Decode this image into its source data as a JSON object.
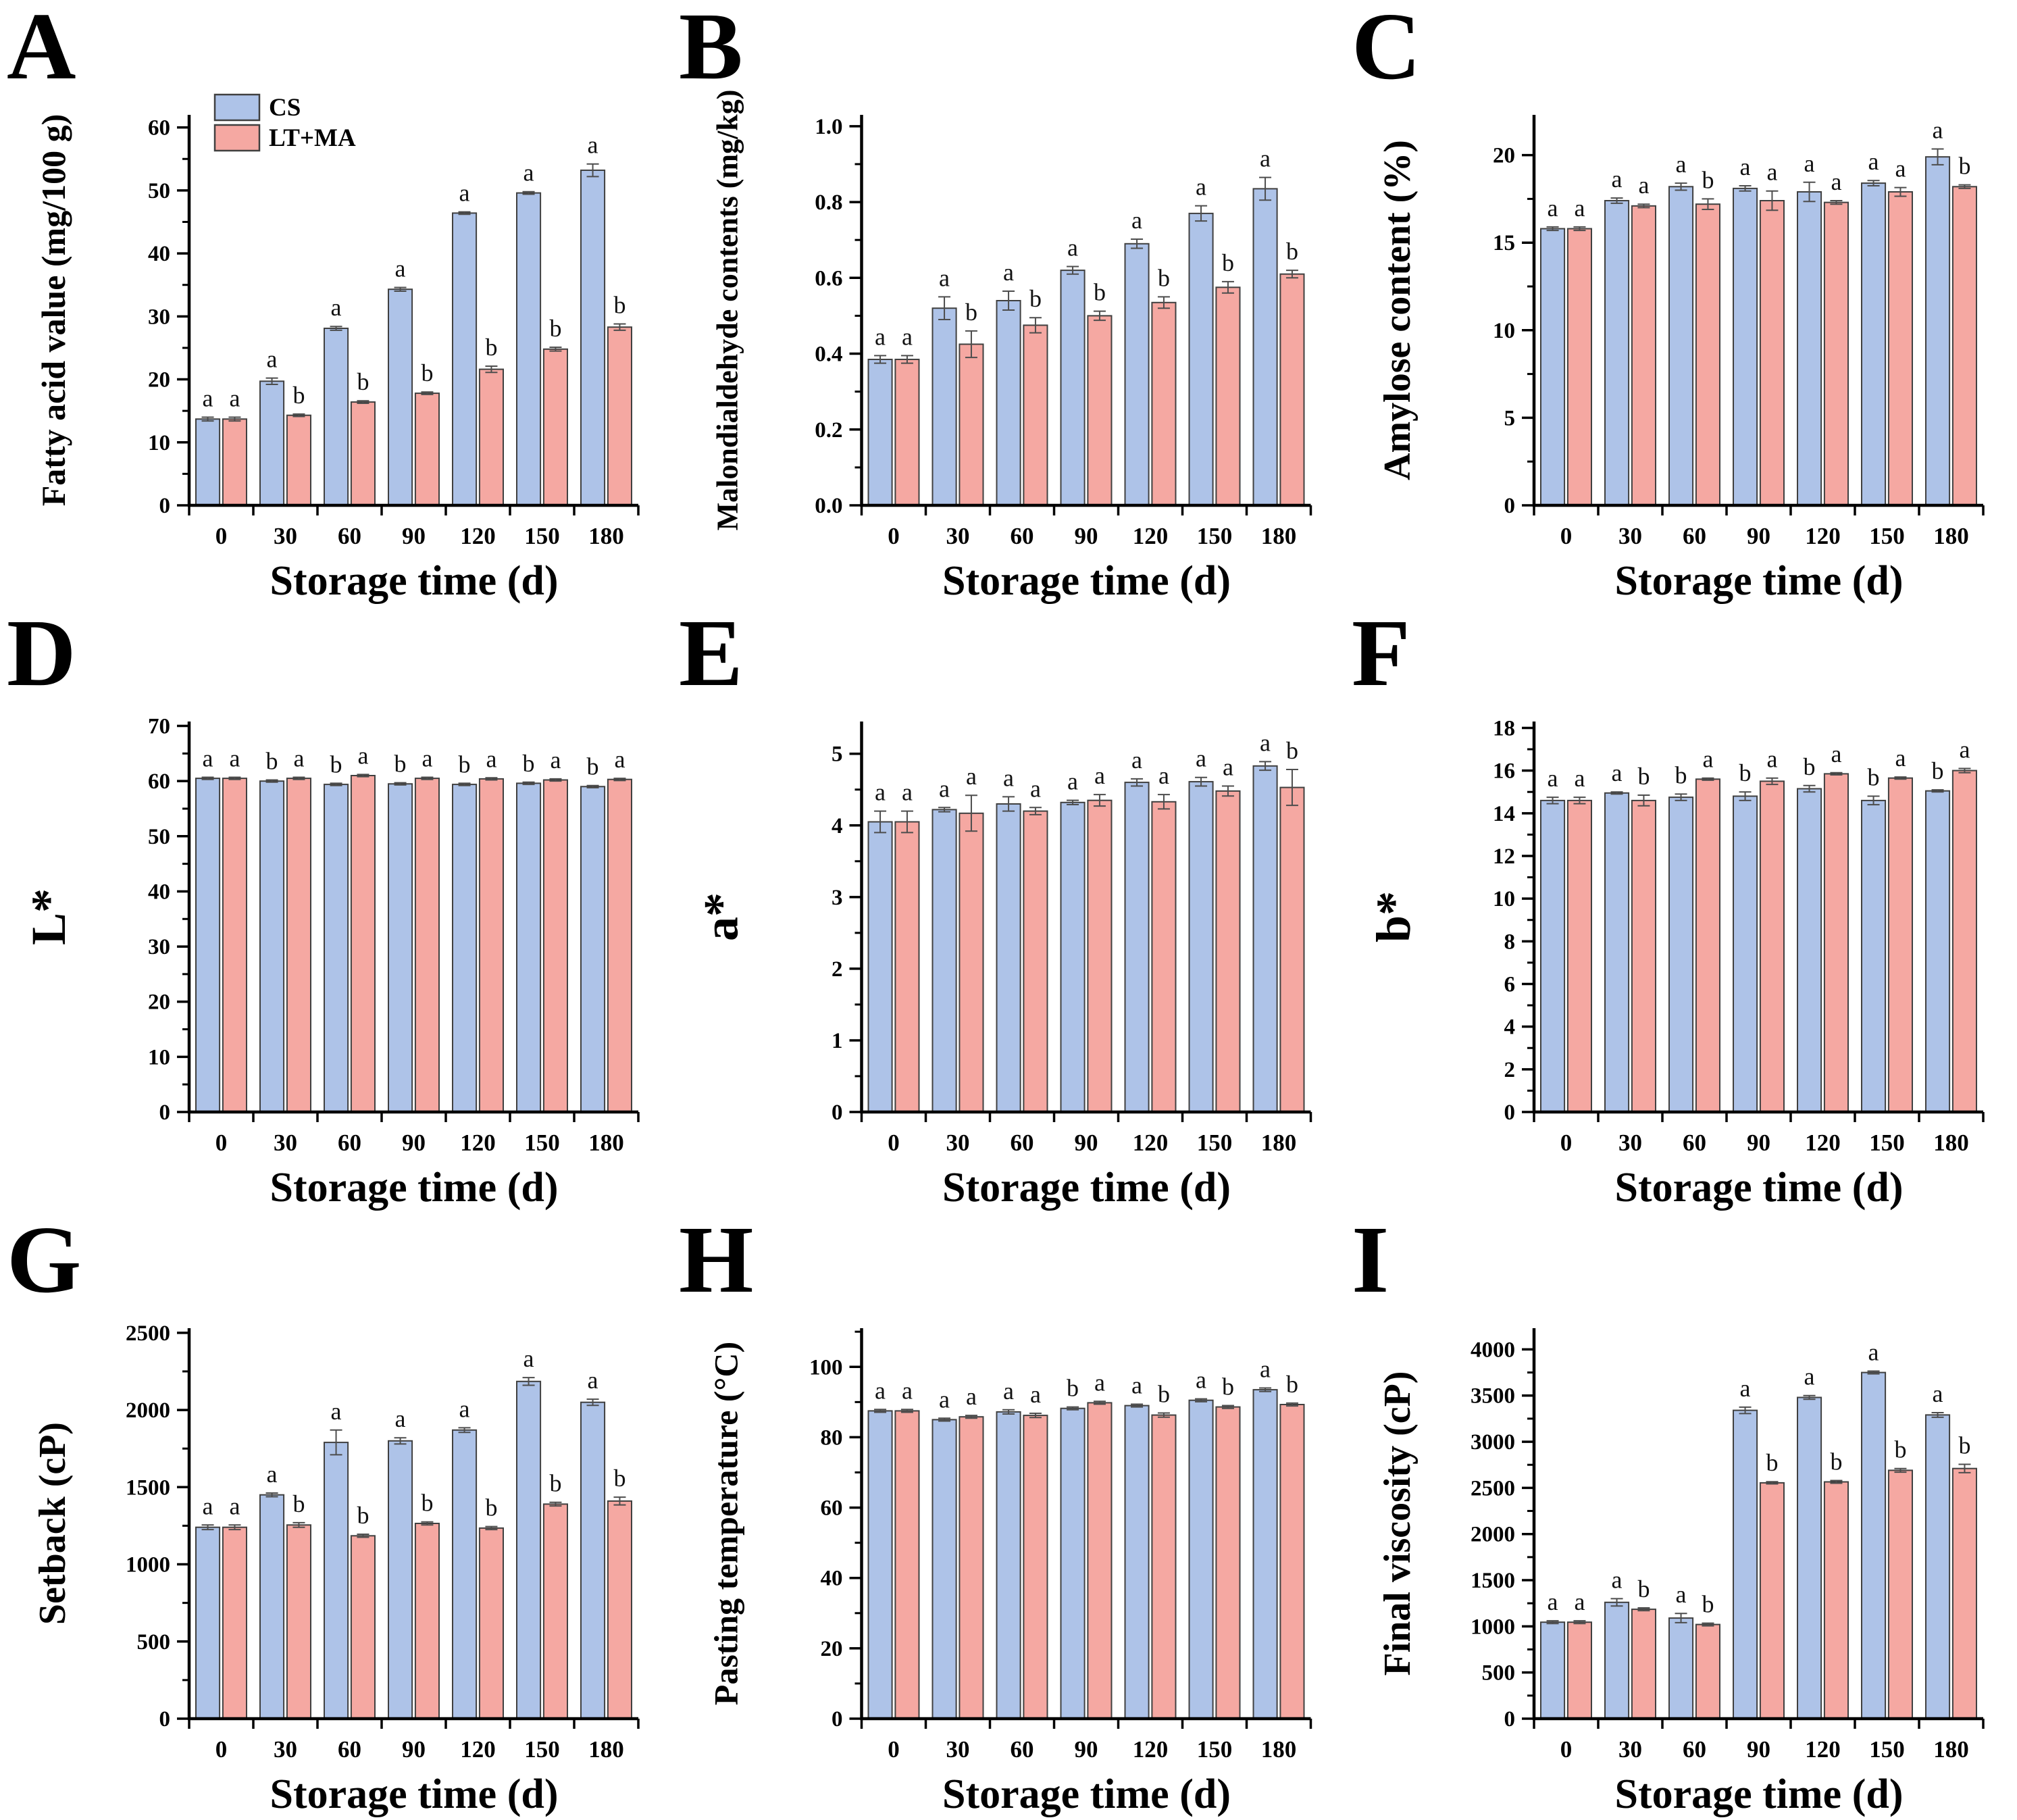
{
  "figure": {
    "background": "#ffffff",
    "axis_color": "#000000",
    "bar_stroke": "#404040",
    "error_color": "#4d4d4d",
    "series_colors": [
      "#aec3e8",
      "#f5a8a2"
    ]
  },
  "legend": {
    "items": [
      {
        "label": "CS",
        "color": "#aec3e8"
      },
      {
        "label": "LT+MA",
        "color": "#f5a8a2"
      }
    ]
  },
  "chart_data": [
    {
      "panel": "A",
      "type": "bar",
      "title": "",
      "xlabel": "Storage time (d)",
      "ylabel": "Fatty acid value (mg/100 g)",
      "categories": [
        "0",
        "30",
        "60",
        "90",
        "120",
        "150",
        "180"
      ],
      "ymax": 62,
      "yticks": [
        0,
        10,
        20,
        30,
        40,
        50,
        60
      ],
      "ytick_labels": [
        "0",
        "10",
        "20",
        "30",
        "40",
        "50",
        "60"
      ],
      "yminor": [
        5,
        15,
        25,
        35,
        45,
        55
      ],
      "legend": true,
      "series": [
        {
          "name": "CS",
          "values": [
            13.7,
            19.7,
            28.1,
            34.3,
            46.4,
            49.6,
            53.2
          ],
          "errors": [
            0.3,
            0.5,
            0.3,
            0.3,
            0.2,
            0.2,
            1.0
          ],
          "letters": [
            "a",
            "a",
            "a",
            "a",
            "a",
            "a",
            "a"
          ]
        },
        {
          "name": "LT+MA",
          "values": [
            13.7,
            14.3,
            16.4,
            17.8,
            21.6,
            24.8,
            28.3
          ],
          "errors": [
            0.3,
            0.2,
            0.2,
            0.2,
            0.5,
            0.3,
            0.5
          ],
          "letters": [
            "a",
            "b",
            "b",
            "b",
            "b",
            "b",
            "b"
          ]
        }
      ]
    },
    {
      "panel": "B",
      "type": "bar",
      "title": "",
      "xlabel": "Storage time (d)",
      "ylabel": "Malondialdehyde contents (mg/kg)",
      "categories": [
        "0",
        "30",
        "60",
        "90",
        "120",
        "150",
        "180"
      ],
      "ymax": 1.03,
      "yticks": [
        0,
        0.2,
        0.4,
        0.6,
        0.8,
        1.0
      ],
      "ytick_labels": [
        "0.0",
        "0.2",
        "0.4",
        "0.6",
        "0.8",
        "1.0"
      ],
      "yminor": [
        0.1,
        0.3,
        0.5,
        0.7,
        0.9
      ],
      "legend": false,
      "series": [
        {
          "name": "CS",
          "values": [
            0.385,
            0.52,
            0.54,
            0.62,
            0.69,
            0.77,
            0.835
          ],
          "errors": [
            0.01,
            0.03,
            0.025,
            0.01,
            0.012,
            0.02,
            0.03
          ],
          "letters": [
            "a",
            "a",
            "a",
            "a",
            "a",
            "a",
            "a"
          ]
        },
        {
          "name": "LT+MA",
          "values": [
            0.385,
            0.425,
            0.475,
            0.5,
            0.535,
            0.575,
            0.61
          ],
          "errors": [
            0.01,
            0.035,
            0.02,
            0.012,
            0.015,
            0.015,
            0.01
          ],
          "letters": [
            "a",
            "b",
            "b",
            "b",
            "b",
            "b",
            "b"
          ]
        }
      ]
    },
    {
      "panel": "C",
      "type": "bar",
      "title": "",
      "xlabel": "Storage time (d)",
      "ylabel": "Amylose content (%)",
      "categories": [
        "0",
        "30",
        "60",
        "90",
        "120",
        "150",
        "180"
      ],
      "ymax": 22.3,
      "yticks": [
        0,
        5,
        10,
        15,
        20
      ],
      "ytick_labels": [
        "0",
        "5",
        "10",
        "15",
        "20"
      ],
      "yminor": [
        2.5,
        7.5,
        12.5,
        17.5
      ],
      "legend": false,
      "series": [
        {
          "name": "CS",
          "values": [
            15.8,
            17.4,
            18.2,
            18.1,
            17.9,
            18.4,
            19.9
          ],
          "errors": [
            0.1,
            0.15,
            0.2,
            0.15,
            0.55,
            0.15,
            0.45
          ],
          "letters": [
            "a",
            "a",
            "a",
            "a",
            "a",
            "a",
            "a"
          ]
        },
        {
          "name": "LT+MA",
          "values": [
            15.8,
            17.1,
            17.2,
            17.4,
            17.3,
            17.9,
            18.2
          ],
          "errors": [
            0.1,
            0.1,
            0.3,
            0.55,
            0.1,
            0.25,
            0.1
          ],
          "letters": [
            "a",
            "a",
            "b",
            "a",
            "a",
            "a",
            "b"
          ]
        }
      ]
    },
    {
      "panel": "D",
      "type": "bar",
      "title": "",
      "xlabel": "Storage time (d)",
      "ylabel": "L*",
      "categories": [
        "0",
        "30",
        "60",
        "90",
        "120",
        "150",
        "180"
      ],
      "ymax": 70.8,
      "yticks": [
        0,
        10,
        20,
        30,
        40,
        50,
        60,
        70
      ],
      "ytick_labels": [
        "0",
        "10",
        "20",
        "30",
        "40",
        "50",
        "60",
        "70"
      ],
      "yminor": [
        5,
        15,
        25,
        35,
        45,
        55,
        65
      ],
      "legend": false,
      "series": [
        {
          "name": "CS",
          "values": [
            60.5,
            60.0,
            59.4,
            59.5,
            59.4,
            59.6,
            59.0
          ],
          "errors": [
            0.2,
            0.2,
            0.2,
            0.2,
            0.2,
            0.2,
            0.2
          ],
          "letters": [
            "a",
            "b",
            "b",
            "b",
            "b",
            "b",
            "b"
          ]
        },
        {
          "name": "LT+MA",
          "values": [
            60.5,
            60.5,
            61.0,
            60.5,
            60.4,
            60.2,
            60.3
          ],
          "errors": [
            0.2,
            0.2,
            0.2,
            0.2,
            0.2,
            0.2,
            0.2
          ],
          "letters": [
            "a",
            "a",
            "a",
            "a",
            "a",
            "a",
            "a"
          ]
        }
      ]
    },
    {
      "panel": "E",
      "type": "bar",
      "title": "",
      "xlabel": "Storage time (d)",
      "ylabel": "a*",
      "categories": [
        "0",
        "30",
        "60",
        "90",
        "120",
        "150",
        "180"
      ],
      "ymax": 5.45,
      "yticks": [
        0,
        1,
        2,
        3,
        4,
        5
      ],
      "ytick_labels": [
        "0",
        "1",
        "2",
        "3",
        "4",
        "5"
      ],
      "yminor": [
        0.5,
        1.5,
        2.5,
        3.5,
        4.5
      ],
      "legend": false,
      "series": [
        {
          "name": "CS",
          "values": [
            4.05,
            4.22,
            4.3,
            4.32,
            4.6,
            4.61,
            4.83
          ],
          "errors": [
            0.15,
            0.03,
            0.1,
            0.03,
            0.05,
            0.06,
            0.06
          ],
          "letters": [
            "a",
            "a",
            "a",
            "a",
            "a",
            "a",
            "a"
          ]
        },
        {
          "name": "LT+MA",
          "values": [
            4.05,
            4.17,
            4.2,
            4.35,
            4.33,
            4.48,
            4.53
          ],
          "errors": [
            0.15,
            0.25,
            0.05,
            0.08,
            0.1,
            0.07,
            0.25
          ],
          "letters": [
            "a",
            "a",
            "a",
            "a",
            "a",
            "a",
            "b"
          ]
        }
      ]
    },
    {
      "panel": "F",
      "type": "bar",
      "title": "",
      "xlabel": "Storage time (d)",
      "ylabel": "b*",
      "categories": [
        "0",
        "30",
        "60",
        "90",
        "120",
        "150",
        "180"
      ],
      "ymax": 18.3,
      "yticks": [
        0,
        2,
        4,
        6,
        8,
        10,
        12,
        14,
        16,
        18
      ],
      "ytick_labels": [
        "0",
        "2",
        "4",
        "6",
        "8",
        "10",
        "12",
        "14",
        "16",
        "18"
      ],
      "yminor": [
        1,
        3,
        5,
        7,
        9,
        11,
        13,
        15,
        17
      ],
      "legend": false,
      "series": [
        {
          "name": "CS",
          "values": [
            14.6,
            14.95,
            14.75,
            14.8,
            15.15,
            14.6,
            15.05
          ],
          "errors": [
            0.15,
            0.05,
            0.15,
            0.2,
            0.15,
            0.2,
            0.05
          ],
          "letters": [
            "a",
            "a",
            "b",
            "b",
            "b",
            "b",
            "b"
          ]
        },
        {
          "name": "LT+MA",
          "values": [
            14.6,
            14.6,
            15.6,
            15.5,
            15.85,
            15.65,
            16.0
          ],
          "errors": [
            0.15,
            0.25,
            0.05,
            0.15,
            0.05,
            0.05,
            0.1
          ],
          "letters": [
            "a",
            "b",
            "a",
            "a",
            "a",
            "a",
            "a"
          ]
        }
      ]
    },
    {
      "panel": "G",
      "type": "bar",
      "title": "",
      "xlabel": "Storage time (d)",
      "ylabel": "Setback  (cP)",
      "categories": [
        "0",
        "30",
        "60",
        "90",
        "120",
        "150",
        "180"
      ],
      "ymax": 2530,
      "yticks": [
        0,
        500,
        1000,
        1500,
        2000,
        2500
      ],
      "ytick_labels": [
        "0",
        "500",
        "1000",
        "1500",
        "2000",
        "2500"
      ],
      "yminor": [
        250,
        750,
        1250,
        1750,
        2250
      ],
      "legend": false,
      "series": [
        {
          "name": "CS",
          "values": [
            1240,
            1450,
            1790,
            1800,
            1870,
            2185,
            2050
          ],
          "errors": [
            15,
            12,
            80,
            20,
            15,
            25,
            20
          ],
          "letters": [
            "a",
            "a",
            "a",
            "a",
            "a",
            "a",
            "a"
          ]
        },
        {
          "name": "LT+MA",
          "values": [
            1240,
            1255,
            1185,
            1265,
            1235,
            1390,
            1410
          ],
          "errors": [
            15,
            15,
            10,
            10,
            10,
            12,
            25
          ],
          "letters": [
            "a",
            "b",
            "b",
            "b",
            "b",
            "b",
            "b"
          ]
        }
      ]
    },
    {
      "panel": "H",
      "type": "bar",
      "title": "",
      "xlabel": "Storage time (d)",
      "ylabel": "Pasting temperature (°C)",
      "categories": [
        "0",
        "30",
        "60",
        "90",
        "120",
        "150",
        "180"
      ],
      "ymax": 111,
      "yticks": [
        0,
        20,
        40,
        60,
        80,
        100
      ],
      "ytick_labels": [
        "0",
        "20",
        "40",
        "60",
        "80",
        "100"
      ],
      "yminor": [
        10,
        30,
        50,
        70,
        90,
        110
      ],
      "legend": false,
      "series": [
        {
          "name": "CS",
          "values": [
            87.5,
            85.0,
            87.2,
            88.2,
            89.0,
            90.5,
            93.5
          ],
          "errors": [
            0.4,
            0.4,
            0.6,
            0.4,
            0.4,
            0.4,
            0.5
          ],
          "letters": [
            "a",
            "a",
            "a",
            "b",
            "a",
            "a",
            "a"
          ]
        },
        {
          "name": "LT+MA",
          "values": [
            87.5,
            85.8,
            86.2,
            89.8,
            86.3,
            88.6,
            89.3
          ],
          "errors": [
            0.4,
            0.4,
            0.6,
            0.4,
            0.6,
            0.4,
            0.4
          ],
          "letters": [
            "a",
            "a",
            "a",
            "a",
            "b",
            "b",
            "b"
          ]
        }
      ]
    },
    {
      "panel": "I",
      "type": "bar",
      "title": "",
      "xlabel": "Storage time (d)",
      "ylabel": "Final viscosity (cP)",
      "categories": [
        "0",
        "30",
        "60",
        "90",
        "120",
        "150",
        "180"
      ],
      "ymax": 4230,
      "yticks": [
        0,
        500,
        1000,
        1500,
        2000,
        2500,
        3000,
        3500,
        4000
      ],
      "ytick_labels": [
        "0",
        "500",
        "1000",
        "1500",
        "2000",
        "2500",
        "3000",
        "3500",
        "4000"
      ],
      "yminor": [
        250,
        750,
        1250,
        1750,
        2250,
        2750,
        3250,
        3750
      ],
      "legend": false,
      "series": [
        {
          "name": "CS",
          "values": [
            1045,
            1260,
            1090,
            3340,
            3480,
            3750,
            3290
          ],
          "errors": [
            15,
            40,
            50,
            35,
            20,
            15,
            25
          ],
          "letters": [
            "a",
            "a",
            "a",
            "a",
            "a",
            "a",
            "a"
          ]
        },
        {
          "name": "LT+MA",
          "values": [
            1045,
            1185,
            1020,
            2555,
            2565,
            2690,
            2710
          ],
          "errors": [
            15,
            15,
            15,
            12,
            15,
            20,
            45
          ],
          "letters": [
            "a",
            "b",
            "b",
            "b",
            "b",
            "b",
            "b"
          ]
        }
      ]
    }
  ]
}
